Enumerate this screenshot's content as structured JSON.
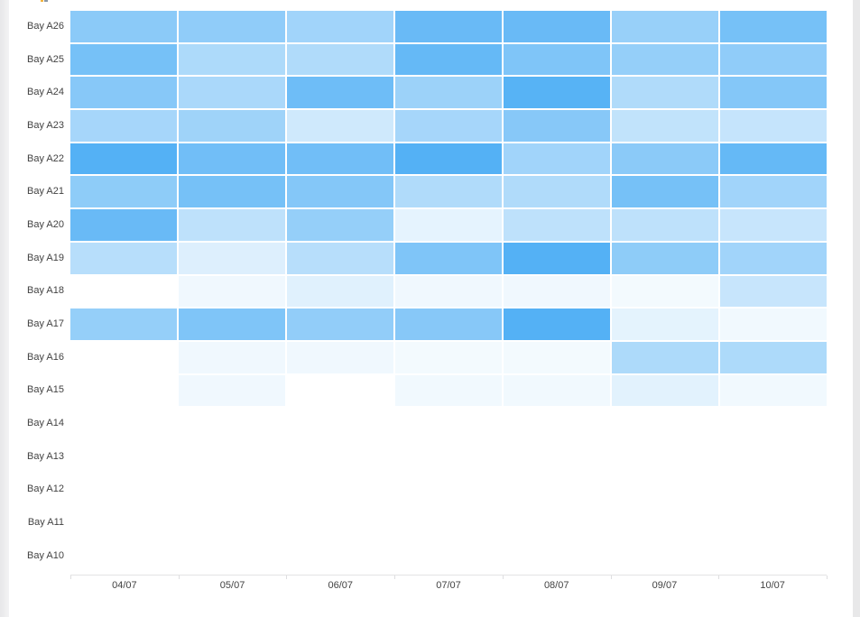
{
  "page": {
    "background": "#FFFFFF",
    "left_gutter_color_start": "#E7E7E9",
    "left_gutter_color_end": "#F3F3F4",
    "right_gutter_color": "#E8E8E9",
    "clipped_fragment_colors": [
      "#F2B33D",
      "#8A97A5"
    ]
  },
  "chart_data": {
    "type": "heatmap",
    "title": "",
    "xlabel": "",
    "ylabel": "",
    "legend": "none",
    "grid": "white 2px gaps between cells",
    "x_categories": [
      "04/07",
      "05/07",
      "06/07",
      "07/07",
      "08/07",
      "09/07",
      "10/07"
    ],
    "y_categories": [
      "Bay A26",
      "Bay A25",
      "Bay A24",
      "Bay A23",
      "Bay A22",
      "Bay A21",
      "Bay A20",
      "Bay A19",
      "Bay A18",
      "Bay A17",
      "Bay A16",
      "Bay A15",
      "Bay A14",
      "Bay A13",
      "Bay A12",
      "Bay A11",
      "Bay A10"
    ],
    "values": [
      [
        68,
        65,
        55,
        88,
        88,
        60,
        80
      ],
      [
        80,
        48,
        46,
        90,
        75,
        62,
        65
      ],
      [
        70,
        50,
        85,
        58,
        98,
        46,
        72
      ],
      [
        52,
        56,
        28,
        52,
        70,
        36,
        34
      ],
      [
        100,
        83,
        83,
        100,
        55,
        68,
        90
      ],
      [
        66,
        80,
        72,
        46,
        46,
        80,
        55
      ],
      [
        88,
        38,
        62,
        15,
        38,
        38,
        33
      ],
      [
        42,
        20,
        42,
        75,
        100,
        66,
        55
      ],
      [
        null,
        9,
        18,
        9,
        9,
        7,
        33
      ],
      [
        62,
        75,
        64,
        70,
        100,
        16,
        8
      ],
      [
        null,
        9,
        9,
        7,
        7,
        48,
        48
      ],
      [
        null,
        9,
        null,
        8,
        8,
        17,
        8
      ],
      [
        null,
        null,
        null,
        null,
        null,
        null,
        null
      ],
      [
        null,
        null,
        null,
        null,
        null,
        null,
        null
      ],
      [
        null,
        null,
        null,
        null,
        null,
        null,
        null
      ],
      [
        null,
        null,
        null,
        null,
        null,
        null,
        null
      ],
      [
        null,
        null,
        null,
        null,
        null,
        null,
        null
      ]
    ],
    "color_scale": {
      "min_value": 0,
      "max_value": 100,
      "min_color": "#FFFFFF",
      "max_color": "#54B1F5"
    },
    "axis": {
      "line_color": "#E3E3E4",
      "tick_color": "#DEDEE0",
      "label_color": "#424242",
      "label_font_size": 11
    }
  }
}
